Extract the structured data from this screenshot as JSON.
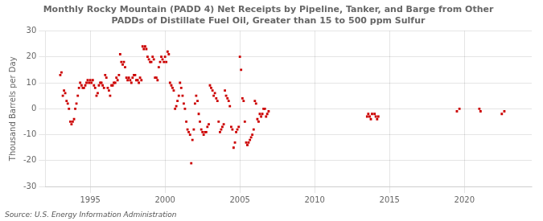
{
  "chart_data": {
    "type": "scatter",
    "title": "Monthly Rocky Mountain (PADD 4) Net Receipts by Pipeline, Tanker, and Barge from Other\nPADDs of Distillate Fuel Oil, Greater than 15 to 500 ppm Sulfur",
    "ylabel": "Thousand Barrels per Day",
    "annotations": [
      "Source: U.S. Energy Information Administration"
    ],
    "color": "#CC0000",
    "marker": "square",
    "grid": true,
    "xlim": [
      1992.0,
      2024.5
    ],
    "ylim": [
      -30,
      30
    ],
    "xticks": [
      1995,
      2000,
      2005,
      2010,
      2015,
      2020
    ],
    "yticks": [
      -30,
      -20,
      -10,
      0,
      10,
      20,
      30
    ],
    "x": [
      1993.0,
      1993.08,
      1993.17,
      1993.25,
      1993.33,
      1993.42,
      1993.5,
      1993.58,
      1993.67,
      1993.75,
      1993.83,
      1993.92,
      1994.0,
      1994.08,
      1994.17,
      1994.25,
      1994.33,
      1994.42,
      1994.5,
      1994.58,
      1994.67,
      1994.75,
      1994.83,
      1994.92,
      1995.0,
      1995.08,
      1995.17,
      1995.25,
      1995.33,
      1995.42,
      1995.5,
      1995.58,
      1995.67,
      1995.75,
      1995.83,
      1995.92,
      1996.0,
      1996.08,
      1996.17,
      1996.25,
      1996.33,
      1996.42,
      1996.5,
      1996.58,
      1996.67,
      1996.75,
      1996.83,
      1996.92,
      1997.0,
      1997.08,
      1997.17,
      1997.25,
      1997.33,
      1997.42,
      1997.5,
      1997.58,
      1997.67,
      1997.75,
      1997.83,
      1997.92,
      1998.0,
      1998.08,
      1998.17,
      1998.25,
      1998.33,
      1998.42,
      1998.5,
      1998.58,
      1998.67,
      1998.75,
      1998.83,
      1998.92,
      1999.0,
      1999.08,
      1999.17,
      1999.25,
      1999.33,
      1999.42,
      1999.5,
      1999.58,
      1999.67,
      1999.75,
      1999.83,
      1999.92,
      2000.0,
      2000.08,
      2000.17,
      2000.25,
      2000.33,
      2000.42,
      2000.5,
      2000.58,
      2000.67,
      2000.75,
      2000.83,
      2000.92,
      2001.0,
      2001.08,
      2001.17,
      2001.25,
      2001.33,
      2001.42,
      2001.5,
      2001.58,
      2001.67,
      2001.75,
      2001.83,
      2001.92,
      2002.0,
      2002.08,
      2002.17,
      2002.25,
      2002.33,
      2002.42,
      2002.5,
      2002.58,
      2002.67,
      2002.75,
      2002.83,
      2002.92,
      2003.0,
      2003.08,
      2003.17,
      2003.25,
      2003.33,
      2003.42,
      2003.5,
      2003.58,
      2003.67,
      2003.75,
      2003.83,
      2003.92,
      2004.0,
      2004.08,
      2004.17,
      2004.25,
      2004.33,
      2004.42,
      2004.5,
      2004.58,
      2004.67,
      2004.75,
      2004.83,
      2004.92,
      2005.0,
      2005.08,
      2005.17,
      2005.25,
      2005.33,
      2005.42,
      2005.5,
      2005.58,
      2005.67,
      2005.75,
      2005.83,
      2005.92,
      2006.0,
      2006.08,
      2006.17,
      2006.25,
      2006.33,
      2006.42,
      2006.5,
      2006.58,
      2006.67,
      2006.75,
      2006.83,
      2006.92,
      2013.5,
      2013.58,
      2013.67,
      2013.75,
      2013.83,
      2014.0,
      2014.08,
      2014.17,
      2014.25,
      2019.5,
      2019.67,
      2021.0,
      2021.08,
      2022.5,
      2022.67
    ],
    "values": [
      13,
      14,
      5,
      7,
      6,
      3,
      2,
      0,
      -5,
      -6,
      -5,
      -4,
      0,
      2,
      5,
      8,
      10,
      9,
      8,
      8,
      9,
      10,
      11,
      10,
      11,
      10,
      11,
      9,
      8,
      5,
      6,
      9,
      10,
      10,
      9,
      8,
      13,
      12,
      8,
      7,
      5,
      9,
      9,
      10,
      10,
      12,
      11,
      13,
      21,
      18,
      17,
      18,
      16,
      12,
      11,
      12,
      11,
      10,
      12,
      13,
      13,
      11,
      11,
      10,
      12,
      11,
      24,
      23,
      24,
      23,
      20,
      19,
      18,
      18,
      20,
      19,
      12,
      12,
      11,
      16,
      18,
      20,
      19,
      18,
      20,
      18,
      22,
      21,
      10,
      9,
      8,
      7,
      0,
      1,
      3,
      5,
      10,
      8,
      5,
      2,
      0,
      -5,
      -8,
      -9,
      -10,
      -21,
      -12,
      -8,
      2,
      5,
      3,
      -2,
      -5,
      -8,
      -9,
      -10,
      -9,
      -9,
      -7,
      -6,
      9,
      8,
      7,
      5,
      6,
      4,
      3,
      -5,
      -9,
      -8,
      -7,
      -6,
      7,
      5,
      4,
      3,
      1,
      -7,
      -8,
      -15,
      -13,
      -9,
      -8,
      -7,
      20,
      15,
      4,
      3,
      -5,
      -13,
      -14,
      -13,
      -12,
      -11,
      -10,
      -8,
      3,
      2,
      -4,
      -5,
      -2,
      -3,
      -2,
      0,
      0,
      -3,
      -2,
      -1,
      -3,
      -2,
      -3,
      -4,
      -2,
      -2,
      -3,
      -4,
      -3,
      -1,
      0,
      0,
      -1,
      -2,
      -1
    ]
  }
}
